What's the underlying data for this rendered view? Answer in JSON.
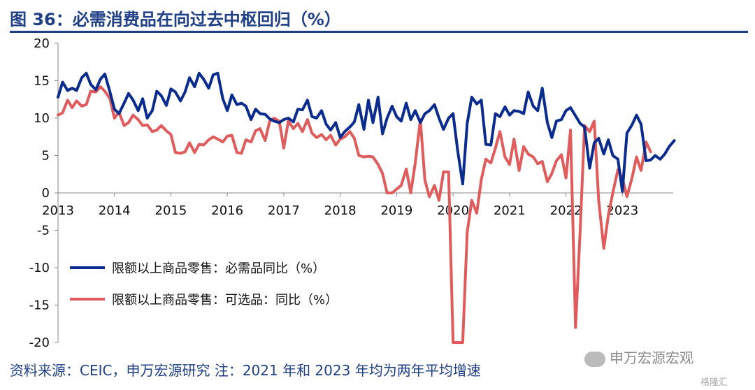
{
  "header": {
    "title": "图 36：必需消费品在向过去中枢回归（%）"
  },
  "footer": {
    "source": "资料来源：CEIC，申万宏源研究 注：2021 年和 2023 年均为两年平均增速"
  },
  "watermark": {
    "text": "申万宏源宏观",
    "logo": "格隆汇"
  },
  "colors": {
    "title": "#1f3f86",
    "series1": "#0b2c8f",
    "series2": "#e05c5c"
  },
  "chart_data": {
    "type": "line",
    "title": "",
    "ylim": [
      -20,
      20
    ],
    "yticks": [
      20,
      15,
      10,
      5,
      0,
      -5,
      -10,
      -15,
      -20
    ],
    "xlim": [
      2013,
      2023.9
    ],
    "xticks": [
      "2013",
      "2014",
      "2015",
      "2016",
      "2017",
      "2018",
      "2019",
      "2020",
      "2021",
      "2022",
      "2023"
    ],
    "legend_position": "lower-left",
    "series": [
      {
        "name": "限额以上商品零售：必需品同比（%）",
        "color": "#0b2c8f",
        "points": [
          [
            2013.0,
            12.8
          ],
          [
            2013.08,
            14.8
          ],
          [
            2013.17,
            13.7
          ],
          [
            2013.25,
            14.0
          ],
          [
            2013.33,
            13.7
          ],
          [
            2013.42,
            15.4
          ],
          [
            2013.5,
            16.0
          ],
          [
            2013.58,
            14.5
          ],
          [
            2013.67,
            13.8
          ],
          [
            2013.75,
            15.2
          ],
          [
            2013.83,
            15.9
          ],
          [
            2013.92,
            13.5
          ],
          [
            2014.0,
            11.2
          ],
          [
            2014.08,
            10.6
          ],
          [
            2014.17,
            12.0
          ],
          [
            2014.25,
            13.3
          ],
          [
            2014.33,
            12.4
          ],
          [
            2014.42,
            11.0
          ],
          [
            2014.5,
            12.6
          ],
          [
            2014.58,
            10.0
          ],
          [
            2014.67,
            11.0
          ],
          [
            2014.75,
            13.6
          ],
          [
            2014.83,
            13.0
          ],
          [
            2014.92,
            11.7
          ],
          [
            2015.0,
            13.9
          ],
          [
            2015.08,
            13.5
          ],
          [
            2015.17,
            12.3
          ],
          [
            2015.25,
            13.5
          ],
          [
            2015.33,
            15.4
          ],
          [
            2015.42,
            14.2
          ],
          [
            2015.5,
            16.0
          ],
          [
            2015.58,
            15.2
          ],
          [
            2015.67,
            14.0
          ],
          [
            2015.75,
            15.8
          ],
          [
            2015.83,
            16.0
          ],
          [
            2015.92,
            12.6
          ],
          [
            2016.0,
            11.0
          ],
          [
            2016.08,
            13.1
          ],
          [
            2016.17,
            11.8
          ],
          [
            2016.25,
            12.0
          ],
          [
            2016.33,
            11.6
          ],
          [
            2016.42,
            9.8
          ],
          [
            2016.5,
            11.2
          ],
          [
            2016.58,
            10.6
          ],
          [
            2016.67,
            10.5
          ],
          [
            2016.75,
            9.9
          ],
          [
            2016.83,
            9.6
          ],
          [
            2016.92,
            9.4
          ],
          [
            2017.0,
            9.8
          ],
          [
            2017.08,
            10.0
          ],
          [
            2017.17,
            9.5
          ],
          [
            2017.25,
            11.2
          ],
          [
            2017.33,
            11.1
          ],
          [
            2017.42,
            12.4
          ],
          [
            2017.5,
            10.2
          ],
          [
            2017.58,
            10.0
          ],
          [
            2017.67,
            11.0
          ],
          [
            2017.75,
            9.2
          ],
          [
            2017.83,
            8.4
          ],
          [
            2017.92,
            9.4
          ],
          [
            2018.0,
            7.4
          ],
          [
            2018.08,
            8.2
          ],
          [
            2018.17,
            8.8
          ],
          [
            2018.25,
            9.5
          ],
          [
            2018.33,
            11.8
          ],
          [
            2018.42,
            8.5
          ],
          [
            2018.5,
            12.4
          ],
          [
            2018.58,
            9.4
          ],
          [
            2018.67,
            12.8
          ],
          [
            2018.75,
            7.9
          ],
          [
            2018.83,
            10.0
          ],
          [
            2018.92,
            11.6
          ],
          [
            2019.0,
            10.2
          ],
          [
            2019.08,
            9.6
          ],
          [
            2019.17,
            12.0
          ],
          [
            2019.25,
            9.8
          ],
          [
            2019.33,
            11.0
          ],
          [
            2019.42,
            9.4
          ],
          [
            2019.5,
            10.6
          ],
          [
            2019.58,
            11.0
          ],
          [
            2019.67,
            11.8
          ],
          [
            2019.75,
            10.0
          ],
          [
            2019.83,
            8.5
          ],
          [
            2019.92,
            10.0
          ],
          [
            2020.0,
            10.6
          ],
          [
            2020.08,
            5.7
          ],
          [
            2020.17,
            1.2
          ],
          [
            2020.25,
            9.3
          ],
          [
            2020.33,
            12.8
          ],
          [
            2020.42,
            11.9
          ],
          [
            2020.5,
            12.4
          ],
          [
            2020.58,
            6.5
          ],
          [
            2020.67,
            6.4
          ],
          [
            2020.75,
            10.6
          ],
          [
            2020.83,
            10.2
          ],
          [
            2020.92,
            11.5
          ],
          [
            2021.0,
            10.4
          ],
          [
            2021.08,
            11.0
          ],
          [
            2021.17,
            10.9
          ],
          [
            2021.25,
            10.6
          ],
          [
            2021.33,
            13.5
          ],
          [
            2021.42,
            11.6
          ],
          [
            2021.5,
            11.0
          ],
          [
            2021.58,
            14.0
          ],
          [
            2021.67,
            9.4
          ],
          [
            2021.75,
            7.4
          ],
          [
            2021.83,
            9.6
          ],
          [
            2021.92,
            9.8
          ],
          [
            2022.0,
            11.0
          ],
          [
            2022.08,
            11.4
          ],
          [
            2022.17,
            10.3
          ],
          [
            2022.25,
            9.3
          ],
          [
            2022.33,
            8.8
          ],
          [
            2022.42,
            3.3
          ],
          [
            2022.5,
            6.7
          ],
          [
            2022.58,
            7.3
          ],
          [
            2022.67,
            5.2
          ],
          [
            2022.75,
            7.1
          ],
          [
            2022.83,
            5.0
          ],
          [
            2022.92,
            4.5
          ],
          [
            2023.0,
            0.2
          ],
          [
            2023.08,
            8.0
          ],
          [
            2023.17,
            9.1
          ],
          [
            2023.25,
            10.4
          ],
          [
            2023.33,
            9.2
          ],
          [
            2023.42,
            4.3
          ],
          [
            2023.5,
            4.4
          ],
          [
            2023.58,
            5.0
          ],
          [
            2023.67,
            4.5
          ],
          [
            2023.75,
            5.2
          ],
          [
            2023.83,
            6.2
          ],
          [
            2023.92,
            7.0
          ]
        ]
      },
      {
        "name": "限额以上商品零售：可选品：同比（%）",
        "color": "#e05c5c",
        "points": [
          [
            2013.0,
            10.4
          ],
          [
            2013.08,
            10.7
          ],
          [
            2013.17,
            12.4
          ],
          [
            2013.25,
            11.4
          ],
          [
            2013.33,
            12.3
          ],
          [
            2013.42,
            11.6
          ],
          [
            2013.5,
            11.8
          ],
          [
            2013.58,
            13.6
          ],
          [
            2013.67,
            13.5
          ],
          [
            2013.75,
            14.2
          ],
          [
            2013.83,
            13.6
          ],
          [
            2013.92,
            12.6
          ],
          [
            2014.0,
            10.0
          ],
          [
            2014.08,
            10.8
          ],
          [
            2014.17,
            9.0
          ],
          [
            2014.25,
            9.4
          ],
          [
            2014.33,
            10.4
          ],
          [
            2014.42,
            9.8
          ],
          [
            2014.5,
            9.0
          ],
          [
            2014.58,
            9.1
          ],
          [
            2014.67,
            8.2
          ],
          [
            2014.75,
            8.4
          ],
          [
            2014.83,
            9.0
          ],
          [
            2014.92,
            8.3
          ],
          [
            2015.0,
            7.8
          ],
          [
            2015.08,
            5.4
          ],
          [
            2015.17,
            5.3
          ],
          [
            2015.25,
            5.5
          ],
          [
            2015.33,
            6.7
          ],
          [
            2015.42,
            5.4
          ],
          [
            2015.5,
            6.5
          ],
          [
            2015.58,
            6.4
          ],
          [
            2015.67,
            7.1
          ],
          [
            2015.75,
            7.5
          ],
          [
            2015.83,
            7.2
          ],
          [
            2015.92,
            6.8
          ],
          [
            2016.0,
            7.6
          ],
          [
            2016.08,
            7.7
          ],
          [
            2016.17,
            5.4
          ],
          [
            2016.25,
            5.3
          ],
          [
            2016.33,
            7.1
          ],
          [
            2016.42,
            6.8
          ],
          [
            2016.5,
            8.3
          ],
          [
            2016.58,
            8.6
          ],
          [
            2016.67,
            7.0
          ],
          [
            2016.75,
            9.6
          ],
          [
            2016.83,
            10.0
          ],
          [
            2016.92,
            9.6
          ],
          [
            2017.0,
            6.0
          ],
          [
            2017.08,
            9.6
          ],
          [
            2017.17,
            8.6
          ],
          [
            2017.25,
            9.3
          ],
          [
            2017.33,
            8.2
          ],
          [
            2017.42,
            9.8
          ],
          [
            2017.5,
            8.0
          ],
          [
            2017.58,
            7.4
          ],
          [
            2017.67,
            7.8
          ],
          [
            2017.75,
            7.1
          ],
          [
            2017.83,
            7.7
          ],
          [
            2017.92,
            6.4
          ],
          [
            2018.0,
            7.2
          ],
          [
            2018.08,
            7.5
          ],
          [
            2018.17,
            8.2
          ],
          [
            2018.25,
            7.3
          ],
          [
            2018.33,
            5.0
          ],
          [
            2018.42,
            4.8
          ],
          [
            2018.5,
            4.9
          ],
          [
            2018.58,
            4.8
          ],
          [
            2018.67,
            3.8
          ],
          [
            2018.75,
            2.6
          ],
          [
            2018.83,
            0.0
          ],
          [
            2018.92,
            0.0
          ],
          [
            2019.0,
            0.5
          ],
          [
            2019.08,
            1.0
          ],
          [
            2019.17,
            3.2
          ],
          [
            2019.25,
            0.0
          ],
          [
            2019.33,
            4.0
          ],
          [
            2019.42,
            9.8
          ],
          [
            2019.5,
            1.7
          ],
          [
            2019.58,
            -0.5
          ],
          [
            2019.67,
            1.0
          ],
          [
            2019.75,
            -1.0
          ],
          [
            2019.83,
            2.8
          ],
          [
            2019.92,
            2.8
          ],
          [
            2020.0,
            -20.0
          ],
          [
            2020.08,
            -20.0
          ],
          [
            2020.17,
            -20.0
          ],
          [
            2020.25,
            -5.3
          ],
          [
            2020.33,
            -1.0
          ],
          [
            2020.42,
            -2.7
          ],
          [
            2020.5,
            1.8
          ],
          [
            2020.58,
            4.5
          ],
          [
            2020.67,
            4.0
          ],
          [
            2020.75,
            6.0
          ],
          [
            2020.83,
            8.2
          ],
          [
            2020.92,
            4.8
          ],
          [
            2021.0,
            3.8
          ],
          [
            2021.08,
            7.2
          ],
          [
            2021.17,
            3.0
          ],
          [
            2021.25,
            6.2
          ],
          [
            2021.33,
            5.2
          ],
          [
            2021.42,
            4.8
          ],
          [
            2021.5,
            3.9
          ],
          [
            2021.58,
            4.2
          ],
          [
            2021.67,
            1.5
          ],
          [
            2021.75,
            2.6
          ],
          [
            2021.83,
            4.3
          ],
          [
            2021.92,
            5.1
          ],
          [
            2022.0,
            2.0
          ],
          [
            2022.08,
            8.4
          ],
          [
            2022.17,
            -18.0
          ],
          [
            2022.25,
            -5.3
          ],
          [
            2022.33,
            9.0
          ],
          [
            2022.42,
            8.2
          ],
          [
            2022.5,
            9.6
          ],
          [
            2022.58,
            -1.0
          ],
          [
            2022.67,
            -7.4
          ],
          [
            2022.75,
            -3.0
          ],
          [
            2022.83,
            0.0
          ],
          [
            2022.92,
            3.1
          ],
          [
            2023.0,
            2.0
          ],
          [
            2023.08,
            -0.5
          ],
          [
            2023.17,
            2.0
          ],
          [
            2023.25,
            4.8
          ],
          [
            2023.33,
            3.0
          ],
          [
            2023.42,
            6.8
          ],
          [
            2023.5,
            5.5
          ]
        ]
      }
    ]
  }
}
